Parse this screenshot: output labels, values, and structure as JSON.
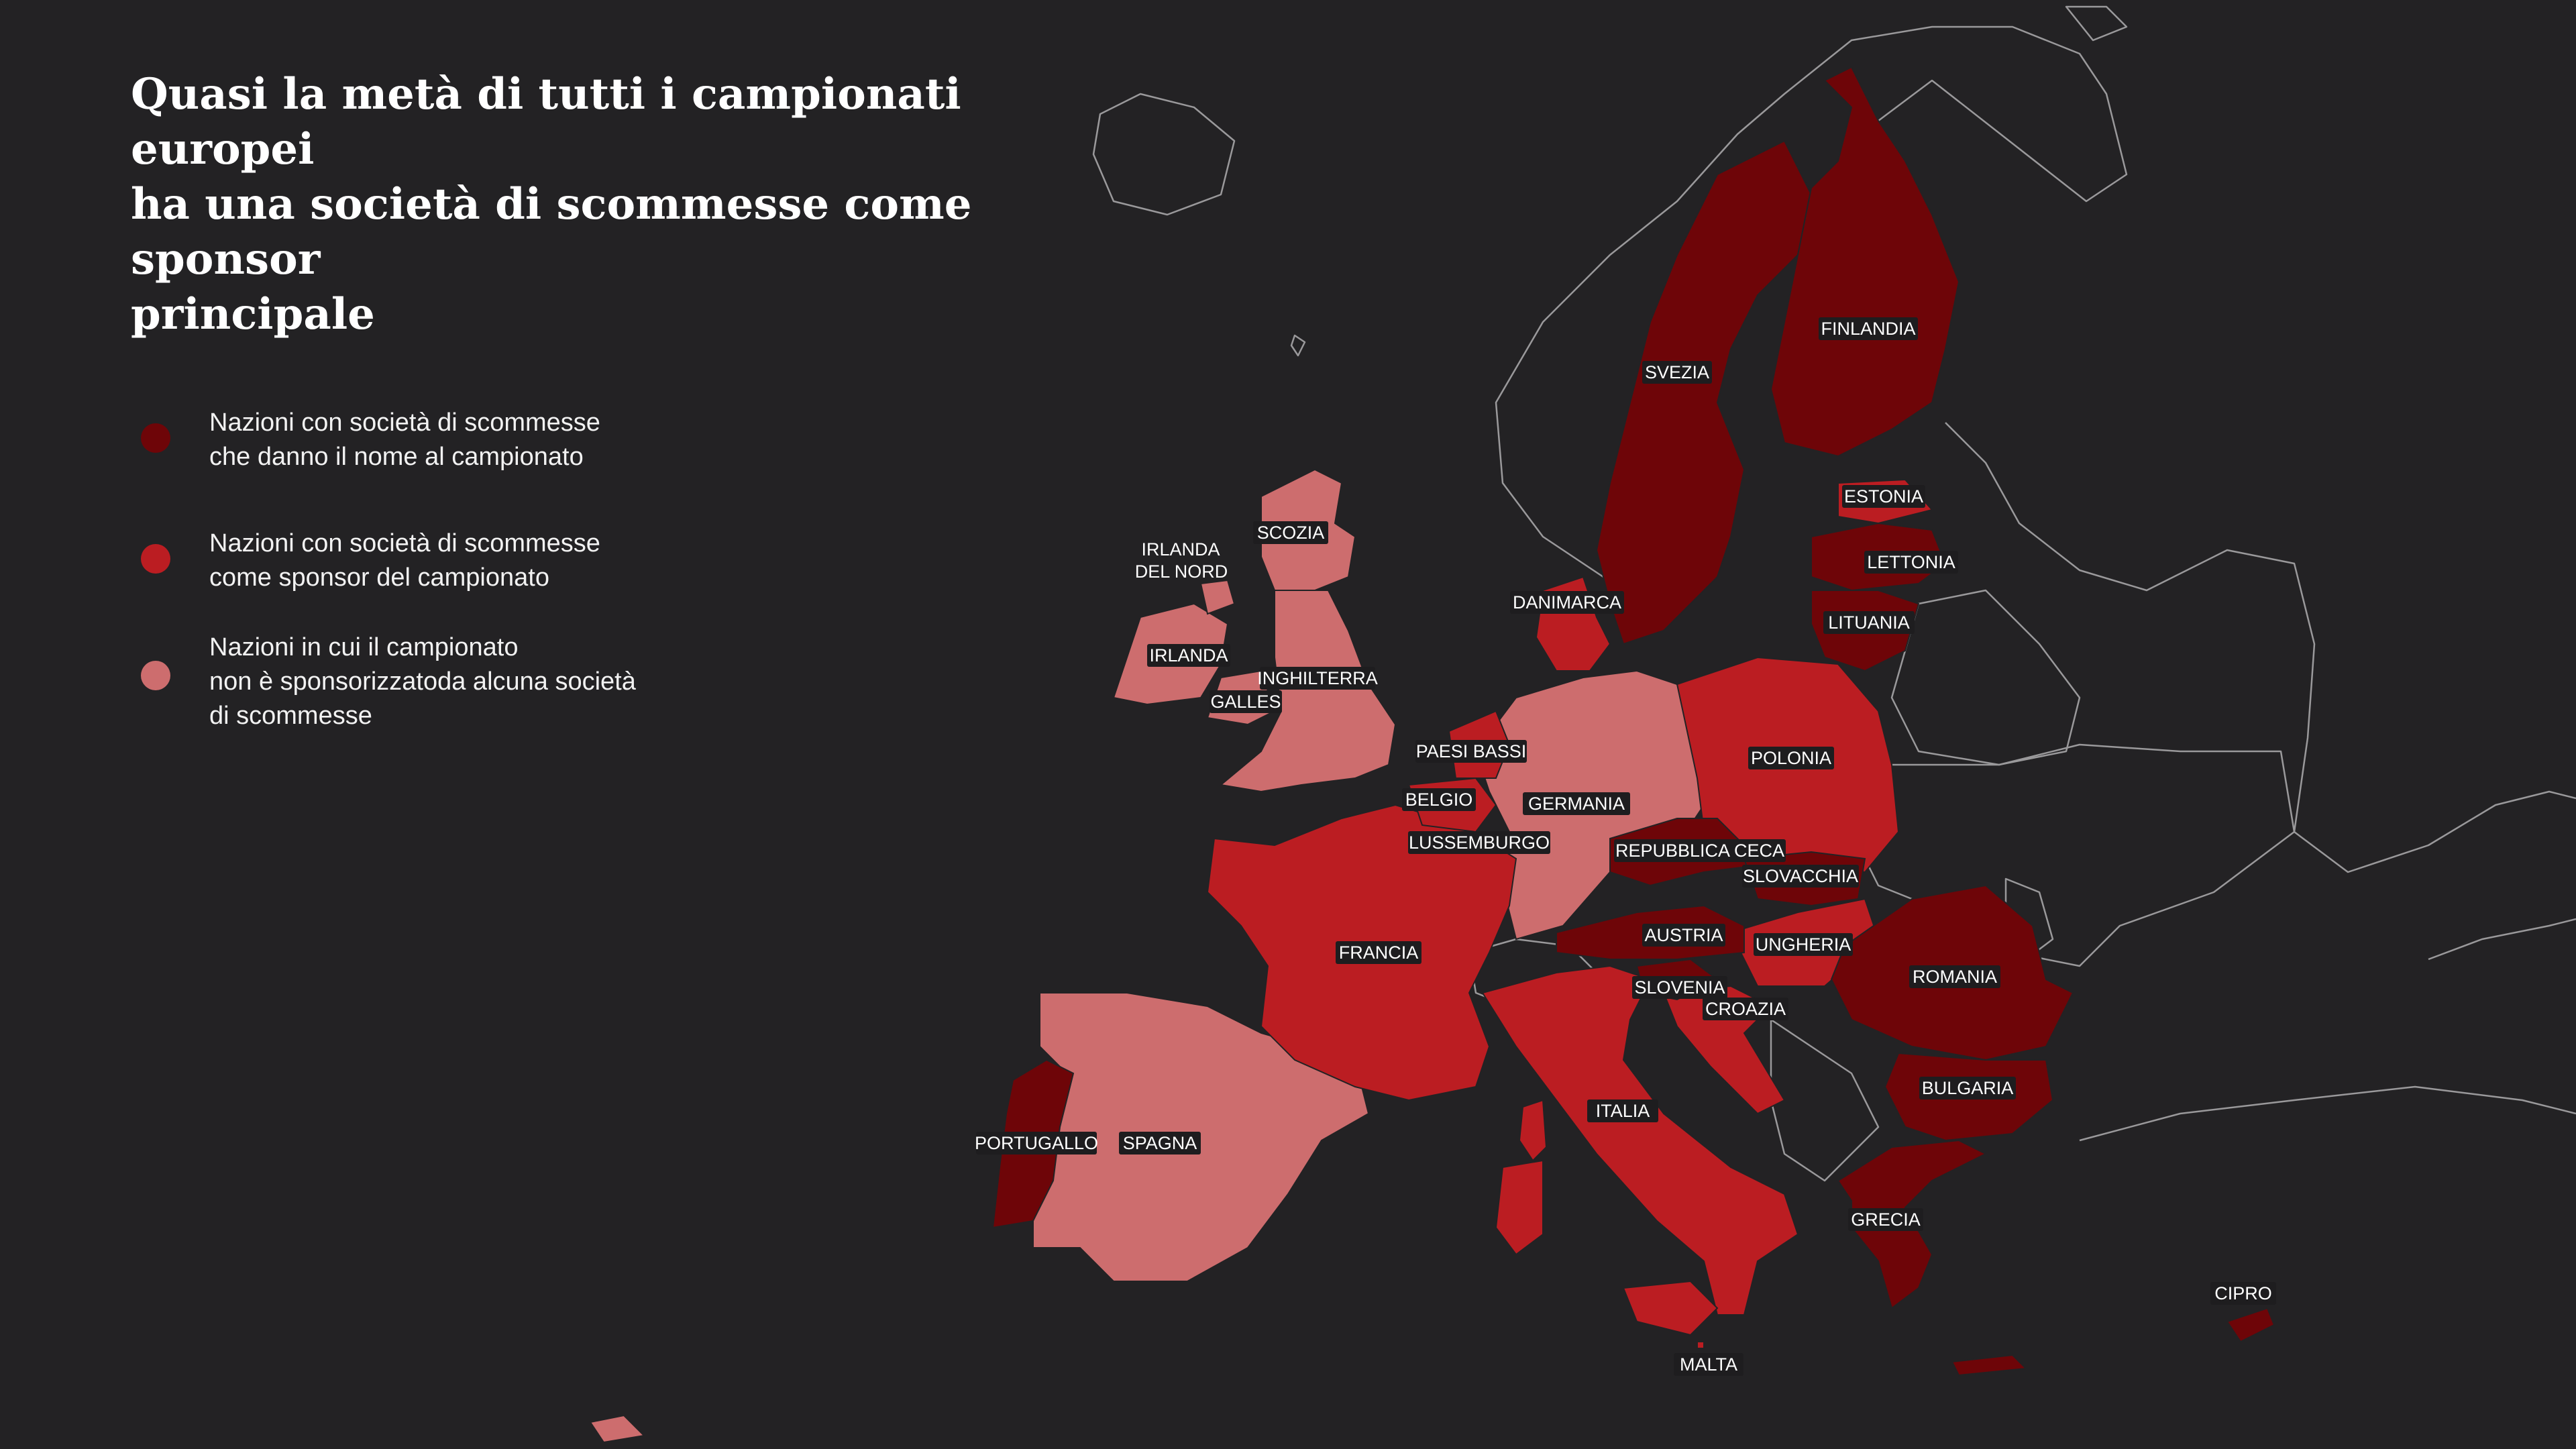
{
  "title": {
    "line1": "Quasi la metà di tutti i campionati europei",
    "line2": "ha una società di scommesse come sponsor",
    "line3": "principale"
  },
  "legend": [
    {
      "key": "naming",
      "color": "#6e0508",
      "lines": [
        "Nazioni con società di scommesse",
        "che danno il nome al campionato"
      ]
    },
    {
      "key": "sponsor",
      "color": "#bb1d22",
      "lines": [
        "Nazioni con società di scommesse",
        "come sponsor del campionato"
      ]
    },
    {
      "key": "none",
      "color": "#cd6d6e",
      "lines": [
        "Nazioni in cui il campionato",
        "non è sponsorizzatoda alcuna società",
        "di scommesse"
      ]
    }
  ],
  "colors": {
    "background": "#232224",
    "outline": "#9a999b",
    "naming": "#6e0508",
    "sponsor": "#bb1d22",
    "none": "#cd6d6e"
  },
  "countries": [
    {
      "name": "FINLANDIA",
      "category": "naming"
    },
    {
      "name": "SVEZIA",
      "category": "naming"
    },
    {
      "name": "ESTONIA",
      "category": "sponsor"
    },
    {
      "name": "LETTONIA",
      "category": "naming"
    },
    {
      "name": "LITUANIA",
      "category": "naming"
    },
    {
      "name": "DANIMARCA",
      "category": "sponsor"
    },
    {
      "name": "IRLANDA DEL NORD",
      "category": "none"
    },
    {
      "name": "SCOZIA",
      "category": "none"
    },
    {
      "name": "IRLANDA",
      "category": "none"
    },
    {
      "name": "INGHILTERRA",
      "category": "none"
    },
    {
      "name": "GALLES",
      "category": "none"
    },
    {
      "name": "PAESI BASSI",
      "category": "sponsor"
    },
    {
      "name": "BELGIO",
      "category": "sponsor"
    },
    {
      "name": "GERMANIA",
      "category": "none"
    },
    {
      "name": "LUSSEMBURGO",
      "category": "sponsor"
    },
    {
      "name": "POLONIA",
      "category": "sponsor"
    },
    {
      "name": "REPUBBLICA CECA",
      "category": "naming"
    },
    {
      "name": "SLOVACCHIA",
      "category": "naming"
    },
    {
      "name": "AUSTRIA",
      "category": "naming"
    },
    {
      "name": "UNGHERIA",
      "category": "sponsor"
    },
    {
      "name": "SLOVENIA",
      "category": "naming"
    },
    {
      "name": "CROAZIA",
      "category": "sponsor"
    },
    {
      "name": "ROMANIA",
      "category": "naming"
    },
    {
      "name": "BULGARIA",
      "category": "naming"
    },
    {
      "name": "GRECIA",
      "category": "naming"
    },
    {
      "name": "CIPRO",
      "category": "naming"
    },
    {
      "name": "MALTA",
      "category": "sponsor"
    },
    {
      "name": "ITALIA",
      "category": "sponsor"
    },
    {
      "name": "FRANCIA",
      "category": "sponsor"
    },
    {
      "name": "SPAGNA",
      "category": "none"
    },
    {
      "name": "PORTUGALLO",
      "category": "naming"
    }
  ],
  "labels": {
    "FINLANDIA": "FINLANDIA",
    "SVEZIA": "SVEZIA",
    "ESTONIA": "ESTONIA",
    "LETTONIA": "LETTONIA",
    "LITUANIA": "LITUANIA",
    "DANIMARCA": "DANIMARCA",
    "IRLANDA_NORD_1": "IRLANDA",
    "IRLANDA_NORD_2": "DEL NORD",
    "SCOZIA": "SCOZIA",
    "IRLANDA": "IRLANDA",
    "INGHILTERRA": "INGHILTERRA",
    "GALLES": "GALLES",
    "PAESI_BASSI": "PAESI BASSI",
    "BELGIO": "BELGIO",
    "GERMANIA": "GERMANIA",
    "LUSSEMBURGO": "LUSSEMBURGO",
    "POLONIA": "POLONIA",
    "REPUBBLICA_CECA": "REPUBBLICA CECA",
    "SLOVACCHIA": "SLOVACCHIA",
    "AUSTRIA": "AUSTRIA",
    "UNGHERIA": "UNGHERIA",
    "SLOVENIA": "SLOVENIA",
    "CROAZIA": "CROAZIA",
    "ROMANIA": "ROMANIA",
    "BULGARIA": "BULGARIA",
    "GRECIA": "GRECIA",
    "CIPRO": "CIPRO",
    "MALTA": "MALTA",
    "ITALIA": "ITALIA",
    "FRANCIA": "FRANCIA",
    "SPAGNA": "SPAGNA",
    "PORTUGALLO": "PORTUGALLO"
  }
}
